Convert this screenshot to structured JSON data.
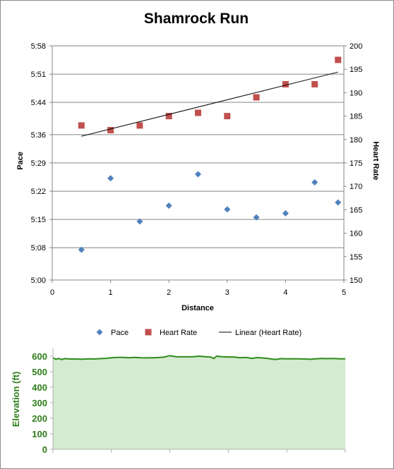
{
  "chart_data": [
    {
      "type": "scatter",
      "title": "Shamrock Run",
      "xlabel": "Distance",
      "ylabel": "Pace",
      "y2label": "Heart Rate",
      "xlim": [
        0,
        5
      ],
      "xticks": [
        0,
        1,
        2,
        3,
        4,
        5
      ],
      "ylim_seconds": [
        300,
        358
      ],
      "yticks_seconds": [
        300,
        308,
        315,
        322,
        329,
        336,
        344,
        351,
        358
      ],
      "ytick_labels": [
        "5:00",
        "5:08",
        "5:15",
        "5:22",
        "5:29",
        "5:36",
        "5:44",
        "5:51",
        "5:58"
      ],
      "y2lim": [
        150,
        200
      ],
      "y2ticks": [
        150,
        155,
        160,
        165,
        170,
        175,
        180,
        185,
        190,
        195,
        200
      ],
      "grid": true,
      "legend_position": "bottom",
      "series": [
        {
          "name": "Pace",
          "axis": "left",
          "marker": "diamond",
          "color": "#4f81bd",
          "x": [
            0.5,
            1.0,
            1.5,
            2.0,
            2.5,
            3.0,
            3.5,
            4.0,
            4.5,
            4.9
          ],
          "y_seconds": [
            307.5,
            325.2,
            314.5,
            318.4,
            326.2,
            317.5,
            315.5,
            316.5,
            324.2,
            319.2
          ]
        },
        {
          "name": "Heart Rate",
          "axis": "right",
          "marker": "square",
          "color": "#c0504d",
          "x": [
            0.5,
            1.0,
            1.5,
            2.0,
            2.5,
            3.0,
            3.5,
            4.0,
            4.5,
            4.9
          ],
          "y": [
            183,
            182,
            183,
            185,
            185.7,
            185,
            189,
            191.8,
            191.8,
            197
          ]
        },
        {
          "name": "Linear (Heart Rate)",
          "axis": "right",
          "style": "line",
          "color": "#000000",
          "x": [
            0.5,
            4.9
          ],
          "y": [
            180.7,
            194.4
          ]
        }
      ]
    },
    {
      "type": "area",
      "ylabel": "Elevation (ft)",
      "ylim": [
        0,
        650
      ],
      "yticks": [
        0,
        100,
        200,
        300,
        400,
        500,
        600
      ],
      "xlim": [
        0,
        5
      ],
      "line_color": "#2e8b1a",
      "fill_color": "#d5ead0",
      "x": [
        0.0,
        0.05,
        0.1,
        0.15,
        0.2,
        0.3,
        0.4,
        0.5,
        0.6,
        0.7,
        0.8,
        0.9,
        1.0,
        1.1,
        1.2,
        1.3,
        1.4,
        1.5,
        1.6,
        1.7,
        1.8,
        1.9,
        2.0,
        2.05,
        2.1,
        2.2,
        2.3,
        2.4,
        2.5,
        2.6,
        2.7,
        2.75,
        2.8,
        2.9,
        3.0,
        3.1,
        3.2,
        3.3,
        3.4,
        3.5,
        3.6,
        3.7,
        3.8,
        3.9,
        4.0,
        4.1,
        4.2,
        4.3,
        4.4,
        4.5,
        4.6,
        4.7,
        4.8,
        4.9,
        5.0
      ],
      "y": [
        590,
        580,
        585,
        578,
        584,
        582,
        582,
        580,
        583,
        582,
        584,
        586,
        590,
        592,
        592,
        590,
        592,
        590,
        589,
        590,
        591,
        594,
        603,
        600,
        597,
        596,
        596,
        597,
        600,
        597,
        594,
        585,
        600,
        596,
        595,
        594,
        590,
        592,
        586,
        591,
        588,
        584,
        578,
        584,
        583,
        583,
        583,
        582,
        580,
        583,
        585,
        584,
        585,
        583,
        583
      ]
    }
  ]
}
